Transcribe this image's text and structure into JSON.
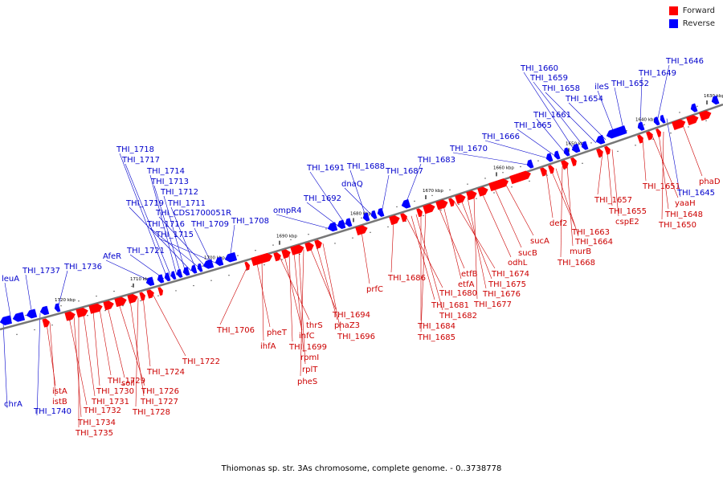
{
  "legend": {
    "forward_label": "Forward",
    "reverse_label": "Reverse"
  },
  "colors": {
    "forward": "#ff0000",
    "reverse": "#0000ff",
    "forward_label": "#cc0000",
    "reverse_label": "#0000cc",
    "backbone": "#777777"
  },
  "caption": "Thiomonas sp. str. 3As chromosome, complete genome. - 0..3738778",
  "scale_ticks": [
    "1630 kbp",
    "1640 kbp",
    "1650 kbp",
    "1660 kbp",
    "1670 kbp",
    "1680 kbp",
    "1690 kbp",
    "1700 kbp",
    "1710 kbp",
    "1720 kbp"
  ],
  "reverse_genes": [
    "leuA",
    "THI_1737",
    "THI_1736",
    "AfeR",
    "THI_1721",
    "THI_1718",
    "THI_1717",
    "THI_1714",
    "THI_1713",
    "THI_1712",
    "THI_1719",
    "THI_1711",
    "THI_1716",
    "THI_CDS1700051R",
    "THI_1709",
    "THI_1715",
    "THI_1708",
    "ompR4",
    "THI_1692",
    "THI_1691",
    "THI_1688",
    "dnaQ",
    "THI_1687",
    "THI_1683",
    "THI_1670",
    "THI_1666",
    "THI_1665",
    "THI_1661",
    "THI_1660",
    "THI_1659",
    "THI_1658",
    "THI_1654",
    "ileS",
    "THI_1652",
    "THI_1649",
    "THI_1646",
    "THI_1645",
    "chrA",
    "THI_1740"
  ],
  "forward_genes": [
    "istA",
    "istB",
    "THI_1732",
    "THI_1734",
    "THI_1735",
    "THI_1731",
    "THI_1730",
    "THI_1729",
    "soll",
    "THI_1726",
    "THI_1727",
    "THI_1728",
    "THI_1724",
    "THI_1722",
    "THI_1706",
    "pheT",
    "ihfA",
    "thrS",
    "infC",
    "THI_1699",
    "rpmI",
    "rplT",
    "pheS",
    "THI_1694",
    "phaZ3",
    "THI_1696",
    "prfC",
    "THI_1686",
    "THI_1680",
    "THI_1681",
    "THI_1682",
    "THI_1684",
    "THI_1685",
    "etfB",
    "etfA",
    "THI_1674",
    "THI_1675",
    "THI_1676",
    "THI_1677",
    "odhL",
    "sucB",
    "sucA",
    "def2",
    "THI_1663",
    "THI_1664",
    "THI_1668",
    "murB",
    "THI_1657",
    "THI_1655",
    "cspE2",
    "THI_1651",
    "yaaH",
    "THI_1648",
    "THI_1650",
    "phaD"
  ]
}
